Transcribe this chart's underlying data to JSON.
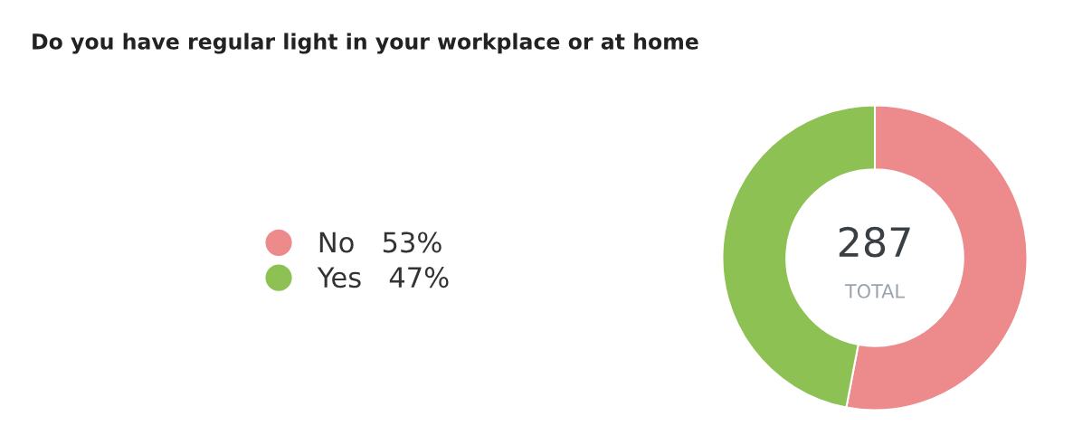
{
  "chart_data": {
    "type": "donut",
    "title": "Do you have regular light in your workplace or at home",
    "categories": [
      "No",
      "Yes"
    ],
    "values": [
      53,
      47
    ],
    "colors": [
      "#ec8a8c",
      "#8dc153"
    ],
    "value_labels": [
      "53%",
      "47%"
    ],
    "annotations": [
      "287",
      "TOTAL"
    ],
    "legend": "left"
  }
}
